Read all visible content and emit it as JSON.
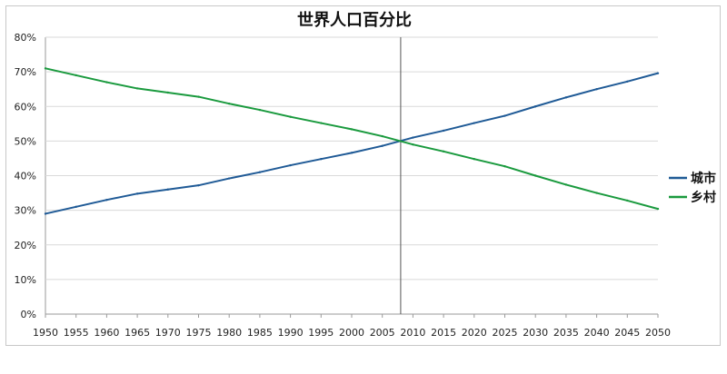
{
  "chart_data": {
    "type": "line",
    "title": "世界人口百分比",
    "xlabel": "",
    "ylabel": "",
    "x": [
      1950,
      1955,
      1960,
      1965,
      1970,
      1975,
      1980,
      1985,
      1990,
      1995,
      2000,
      2005,
      2010,
      2015,
      2020,
      2025,
      2030,
      2035,
      2040,
      2045,
      2050
    ],
    "x_tick_labels": [
      "1950",
      "1955",
      "1960",
      "1965",
      "1970",
      "1975",
      "1980",
      "1985",
      "1990",
      "1995",
      "2000",
      "2005",
      "2010",
      "2015",
      "2020",
      "2025",
      "2030",
      "2035",
      "2040",
      "2045",
      "2050"
    ],
    "y_tick_labels": [
      "0%",
      "10%",
      "20%",
      "30%",
      "40%",
      "50%",
      "60%",
      "70%",
      "80%"
    ],
    "ylim": [
      0,
      80
    ],
    "grid": "horizontal",
    "legend_position": "right",
    "reference_line_x": 2008,
    "series": [
      {
        "name": "城市",
        "color": "#1f5a96",
        "values": [
          29.0,
          31.0,
          33.0,
          34.8,
          36.0,
          37.2,
          39.2,
          41.0,
          43.0,
          44.8,
          46.6,
          48.6,
          51.0,
          53.0,
          55.2,
          57.3,
          60.0,
          62.6,
          65.0,
          67.2,
          69.6
        ]
      },
      {
        "name": "乡村",
        "color": "#1a9a3e",
        "values": [
          71.0,
          69.0,
          67.0,
          65.2,
          64.0,
          62.8,
          60.8,
          59.0,
          57.0,
          55.2,
          53.4,
          51.4,
          49.0,
          47.0,
          44.8,
          42.7,
          40.0,
          37.4,
          35.0,
          32.8,
          30.4
        ]
      }
    ]
  }
}
